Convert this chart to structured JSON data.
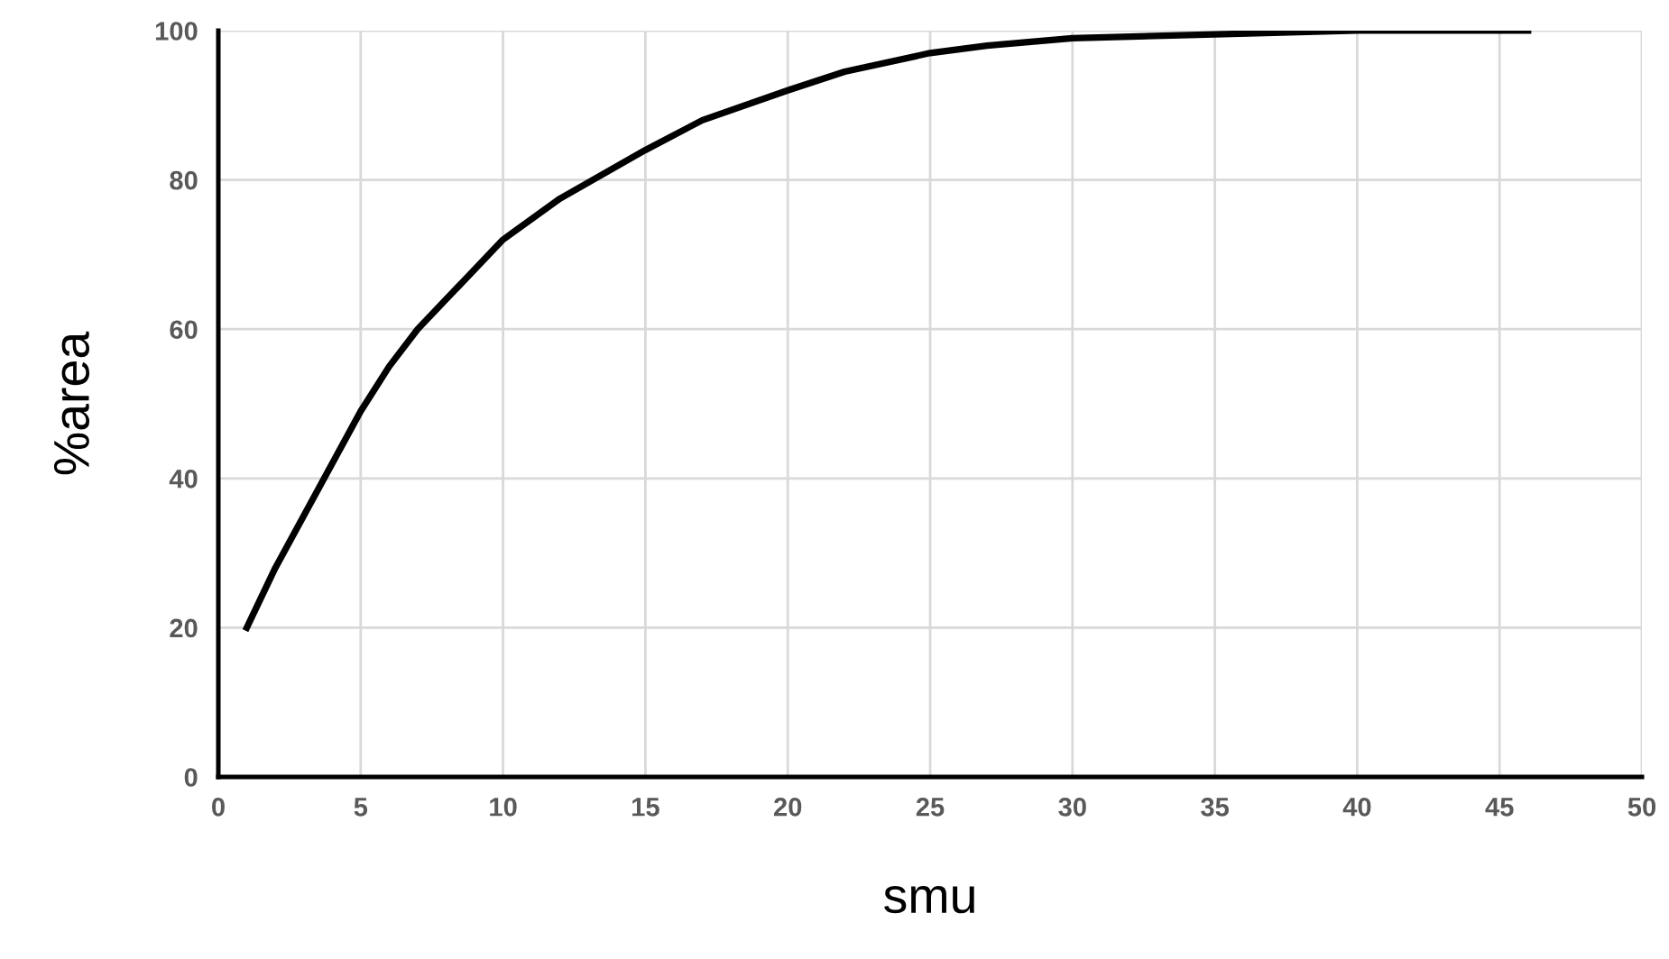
{
  "chart_data": {
    "type": "line",
    "xlabel": "smu",
    "ylabel": "%area",
    "x": [
      1,
      2,
      3,
      4,
      5,
      6,
      7,
      8,
      9,
      10,
      12,
      15,
      17,
      20,
      22,
      25,
      27,
      30,
      35,
      40,
      46
    ],
    "series": [
      {
        "color": "#000000",
        "values": [
          20,
          28,
          35,
          42,
          49,
          55,
          60,
          64,
          68,
          72,
          77.5,
          84,
          88,
          92,
          94.5,
          97,
          98,
          99,
          99.5,
          100,
          100
        ]
      }
    ],
    "xlim": [
      0,
      50
    ],
    "xticks": [
      0,
      5,
      10,
      15,
      20,
      25,
      30,
      35,
      40,
      45,
      50
    ],
    "ylim": [
      0,
      100
    ],
    "yticks": [
      0,
      20,
      40,
      60,
      80,
      100
    ],
    "grid": true,
    "marker": "none",
    "line_style": "solid",
    "legend": false
  }
}
